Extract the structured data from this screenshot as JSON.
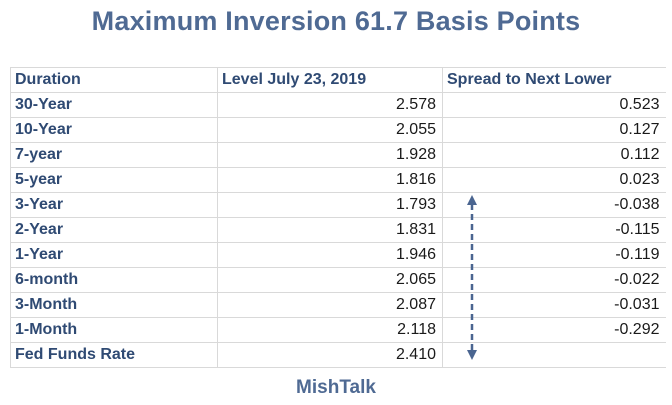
{
  "title": "Maximum Inversion 61.7 Basis Points",
  "footer": "MishTalk",
  "colors": {
    "title": "#4f6a93",
    "header_text": "#2f4a73",
    "arrow": "#4a6590",
    "grid": "#d9d9d9"
  },
  "table": {
    "headers": [
      "Duration",
      "Level July 23, 2019",
      "Spread to Next Lower"
    ],
    "rows": [
      {
        "duration": "30-Year",
        "level": "2.578",
        "spread": "0.523"
      },
      {
        "duration": "10-Year",
        "level": "2.055",
        "spread": "0.127"
      },
      {
        "duration": "7-year",
        "level": "1.928",
        "spread": "0.112"
      },
      {
        "duration": "5-year",
        "level": "1.816",
        "spread": "0.023"
      },
      {
        "duration": "3-Year",
        "level": "1.793",
        "spread": "-0.038"
      },
      {
        "duration": "2-Year",
        "level": "1.831",
        "spread": "-0.115"
      },
      {
        "duration": "1-Year",
        "level": "1.946",
        "spread": "-0.119"
      },
      {
        "duration": "6-month",
        "level": "2.065",
        "spread": "-0.022"
      },
      {
        "duration": "3-Month",
        "level": "2.087",
        "spread": "-0.031"
      },
      {
        "duration": "1-Month",
        "level": "2.118",
        "spread": "-0.292"
      },
      {
        "duration": "Fed Funds Rate",
        "level": "2.410",
        "spread": ""
      }
    ]
  },
  "icons": {
    "arrow": "double-headed-dashed-arrow"
  }
}
